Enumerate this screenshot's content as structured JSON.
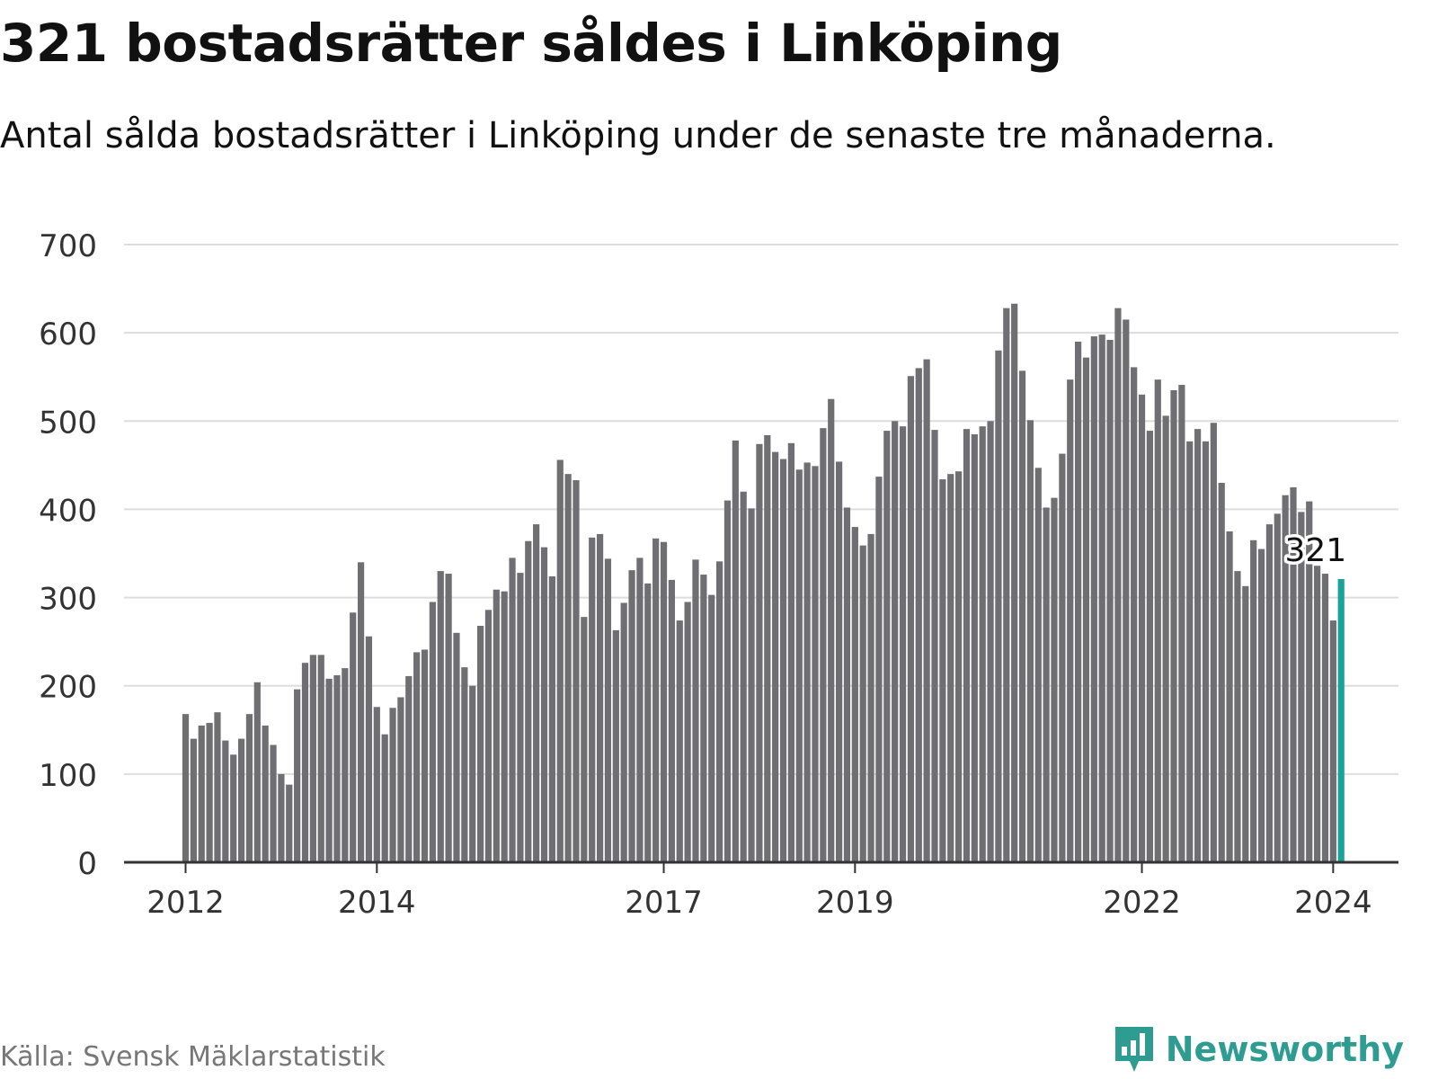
{
  "title": "321 bostadsrätter såldes i Linköping",
  "subtitle": "Antal sålda bostadsrätter i Linköping under de senaste tre månaderna.",
  "source": "Källa: Svensk Mäklarstatistik",
  "brand": "Newsworthy",
  "colors": {
    "bar": "#6e6e73",
    "highlight": "#1aa39a",
    "grid": "#dddddd",
    "axis": "#333333",
    "brand": "#2f9c92"
  },
  "chart_data": {
    "type": "bar",
    "title": "321 bostadsrätter såldes i Linköping",
    "xlabel": "",
    "ylabel": "",
    "ylim": [
      0,
      700
    ],
    "yticks": [
      0,
      100,
      200,
      300,
      400,
      500,
      600,
      700
    ],
    "grid": true,
    "start": "2012-01",
    "frequency": "monthly",
    "xticks": [
      {
        "index": 0,
        "label": "2012"
      },
      {
        "index": 24,
        "label": "2014"
      },
      {
        "index": 60,
        "label": "2017"
      },
      {
        "index": 84,
        "label": "2019"
      },
      {
        "index": 120,
        "label": "2022"
      },
      {
        "index": 144,
        "label": "2024"
      }
    ],
    "highlight": {
      "index": 145,
      "label": "321"
    },
    "values": [
      168,
      140,
      155,
      158,
      170,
      138,
      122,
      140,
      168,
      204,
      155,
      133,
      100,
      88,
      196,
      226,
      235,
      235,
      208,
      212,
      220,
      283,
      340,
      256,
      176,
      145,
      175,
      187,
      211,
      238,
      241,
      295,
      330,
      327,
      260,
      221,
      200,
      268,
      286,
      309,
      307,
      345,
      328,
      364,
      383,
      357,
      324,
      456,
      440,
      433,
      278,
      368,
      372,
      344,
      263,
      294,
      331,
      345,
      316,
      367,
      363,
      320,
      274,
      295,
      343,
      326,
      303,
      341,
      410,
      478,
      420,
      401,
      474,
      484,
      465,
      457,
      475,
      445,
      453,
      449,
      492,
      525,
      454,
      402,
      380,
      359,
      372,
      437,
      489,
      500,
      494,
      551,
      560,
      570,
      490,
      434,
      440,
      443,
      491,
      485,
      494,
      500,
      580,
      628,
      633,
      557,
      501,
      447,
      402,
      413,
      463,
      547,
      590,
      572,
      596,
      598,
      592,
      628,
      615,
      561,
      530,
      489,
      547,
      506,
      535,
      541,
      477,
      491,
      477,
      498,
      430,
      375,
      330,
      313,
      365,
      355,
      383,
      395,
      416,
      425,
      397,
      409,
      336,
      327,
      274,
      321
    ]
  }
}
